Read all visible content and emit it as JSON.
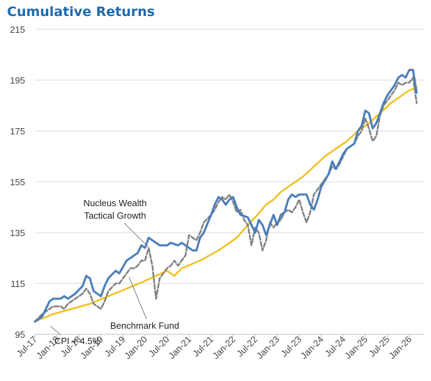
{
  "chart_data": {
    "type": "line",
    "title": "Cumulative Returns",
    "xlabel": "",
    "ylabel": "",
    "ylim": [
      95,
      215
    ],
    "yticks": [
      95,
      115,
      135,
      155,
      175,
      195,
      215
    ],
    "grid": "horizontal",
    "x_start_index": 0,
    "x_end_index": 106,
    "xtick_labels": [
      "Jul-17",
      "Jan-18",
      "Jul-18",
      "Jan-19",
      "Jul-19",
      "Jan-20",
      "Jul-20",
      "Jan-21",
      "Jul-21",
      "Jan-22",
      "Jul-22",
      "Jan-23",
      "Jul-23",
      "Jan-24",
      "Jul-24",
      "Jan-25",
      "Jul-25",
      "Jan-26"
    ],
    "annotations": [
      {
        "id": "nucleus",
        "line1": "Nucleus Wealth",
        "line2": "Tactical Growth"
      },
      {
        "id": "benchmark",
        "text": "Benchmark Fund"
      },
      {
        "id": "cpi",
        "text": "CPI + 4.5%"
      }
    ],
    "series": [
      {
        "name": "Nucleus Wealth Tactical Growth",
        "color": "#4a7ebb",
        "style": "solid",
        "points": [
          [
            0,
            100
          ],
          [
            2,
            102
          ],
          [
            4,
            108
          ],
          [
            5,
            109
          ],
          [
            7,
            109
          ],
          [
            8,
            110
          ],
          [
            9,
            109
          ],
          [
            11,
            111
          ],
          [
            13,
            114
          ],
          [
            14,
            118
          ],
          [
            15,
            117
          ],
          [
            16,
            112
          ],
          [
            18,
            110
          ],
          [
            19,
            114
          ],
          [
            20,
            117
          ],
          [
            22,
            120
          ],
          [
            23,
            119
          ],
          [
            25,
            124
          ],
          [
            26,
            125
          ],
          [
            27,
            126
          ],
          [
            28,
            127
          ],
          [
            29,
            130
          ],
          [
            30,
            129
          ],
          [
            31,
            133
          ],
          [
            33,
            131
          ],
          [
            34,
            130
          ],
          [
            36,
            130
          ],
          [
            37,
            131
          ],
          [
            39,
            130
          ],
          [
            40,
            131
          ],
          [
            41,
            130
          ],
          [
            43,
            128
          ],
          [
            44,
            128
          ],
          [
            45,
            133
          ],
          [
            46,
            135
          ],
          [
            48,
            142
          ],
          [
            49,
            146
          ],
          [
            50,
            149
          ],
          [
            51,
            148
          ],
          [
            52,
            146
          ],
          [
            53,
            148
          ],
          [
            54,
            149
          ],
          [
            55,
            145
          ],
          [
            56,
            142
          ],
          [
            58,
            141
          ],
          [
            59,
            138
          ],
          [
            60,
            135
          ],
          [
            61,
            140
          ],
          [
            62,
            138
          ],
          [
            63,
            134
          ],
          [
            64,
            138
          ],
          [
            65,
            142
          ],
          [
            66,
            138
          ],
          [
            67,
            142
          ],
          [
            68,
            143
          ],
          [
            69,
            148
          ],
          [
            70,
            150
          ],
          [
            71,
            149
          ],
          [
            72,
            150
          ],
          [
            74,
            150
          ],
          [
            75,
            146
          ],
          [
            76,
            144
          ],
          [
            77,
            148
          ],
          [
            78,
            153
          ],
          [
            80,
            158
          ],
          [
            81,
            163
          ],
          [
            82,
            160
          ],
          [
            83,
            163
          ],
          [
            84,
            166
          ],
          [
            85,
            168
          ],
          [
            86,
            169
          ],
          [
            87,
            170
          ],
          [
            88,
            175
          ],
          [
            89,
            177
          ],
          [
            90,
            183
          ],
          [
            91,
            182
          ],
          [
            92,
            176
          ],
          [
            93,
            178
          ],
          [
            94,
            182
          ],
          [
            95,
            186
          ],
          [
            96,
            189
          ],
          [
            97,
            191
          ],
          [
            98,
            193
          ],
          [
            99,
            196
          ],
          [
            100,
            197
          ],
          [
            101,
            196
          ],
          [
            102,
            199
          ],
          [
            103,
            199
          ],
          [
            104,
            190
          ]
        ]
      },
      {
        "name": "Benchmark Fund",
        "color": "#808080",
        "style": "dashed",
        "points": [
          [
            0,
            100
          ],
          [
            2,
            103
          ],
          [
            4,
            105
          ],
          [
            5,
            106
          ],
          [
            7,
            106
          ],
          [
            8,
            105
          ],
          [
            9,
            107
          ],
          [
            11,
            109
          ],
          [
            13,
            111
          ],
          [
            14,
            113
          ],
          [
            15,
            111
          ],
          [
            16,
            107
          ],
          [
            18,
            105
          ],
          [
            19,
            108
          ],
          [
            20,
            112
          ],
          [
            22,
            115
          ],
          [
            23,
            115
          ],
          [
            25,
            119
          ],
          [
            26,
            121
          ],
          [
            27,
            121
          ],
          [
            28,
            122
          ],
          [
            29,
            124
          ],
          [
            30,
            124
          ],
          [
            31,
            129
          ],
          [
            32,
            122
          ],
          [
            33,
            109
          ],
          [
            34,
            117
          ],
          [
            35,
            119
          ],
          [
            36,
            121
          ],
          [
            37,
            122
          ],
          [
            38,
            124
          ],
          [
            39,
            122
          ],
          [
            40,
            124
          ],
          [
            41,
            126
          ],
          [
            42,
            134
          ],
          [
            43,
            133
          ],
          [
            44,
            132
          ],
          [
            45,
            135
          ],
          [
            46,
            139
          ],
          [
            48,
            142
          ],
          [
            49,
            144
          ],
          [
            50,
            147
          ],
          [
            51,
            149
          ],
          [
            52,
            148
          ],
          [
            53,
            150
          ],
          [
            54,
            147
          ],
          [
            55,
            143
          ],
          [
            56,
            144
          ],
          [
            57,
            140
          ],
          [
            58,
            138
          ],
          [
            59,
            130
          ],
          [
            60,
            137
          ],
          [
            61,
            135
          ],
          [
            62,
            128
          ],
          [
            63,
            132
          ],
          [
            64,
            139
          ],
          [
            65,
            137
          ],
          [
            66,
            139
          ],
          [
            67,
            140
          ],
          [
            68,
            143
          ],
          [
            69,
            144
          ],
          [
            70,
            143
          ],
          [
            71,
            145
          ],
          [
            72,
            148
          ],
          [
            73,
            143
          ],
          [
            74,
            139
          ],
          [
            75,
            143
          ],
          [
            76,
            150
          ],
          [
            78,
            154
          ],
          [
            80,
            158
          ],
          [
            81,
            161
          ],
          [
            82,
            160
          ],
          [
            83,
            162
          ],
          [
            84,
            165
          ],
          [
            85,
            168
          ],
          [
            86,
            169
          ],
          [
            87,
            170
          ],
          [
            88,
            173
          ],
          [
            89,
            175
          ],
          [
            90,
            180
          ],
          [
            91,
            176
          ],
          [
            92,
            171
          ],
          [
            93,
            173
          ],
          [
            94,
            181
          ],
          [
            95,
            185
          ],
          [
            96,
            187
          ],
          [
            97,
            189
          ],
          [
            98,
            191
          ],
          [
            99,
            194
          ],
          [
            100,
            193
          ],
          [
            101,
            194
          ],
          [
            102,
            194
          ],
          [
            103,
            196
          ],
          [
            104,
            186
          ]
        ]
      },
      {
        "name": "CPI + 4.5%",
        "color": "#f0c020",
        "style": "solid",
        "points": [
          [
            0,
            100
          ],
          [
            5,
            103
          ],
          [
            10,
            105
          ],
          [
            15,
            107
          ],
          [
            20,
            110
          ],
          [
            25,
            113
          ],
          [
            30,
            116
          ],
          [
            33,
            118
          ],
          [
            36,
            120
          ],
          [
            38,
            118
          ],
          [
            40,
            121
          ],
          [
            45,
            124
          ],
          [
            50,
            128
          ],
          [
            55,
            133
          ],
          [
            58,
            138
          ],
          [
            60,
            141
          ],
          [
            63,
            146
          ],
          [
            65,
            148
          ],
          [
            67,
            151
          ],
          [
            70,
            154
          ],
          [
            73,
            157
          ],
          [
            76,
            161
          ],
          [
            79,
            165
          ],
          [
            82,
            168
          ],
          [
            85,
            171
          ],
          [
            88,
            175
          ],
          [
            91,
            178
          ],
          [
            94,
            182
          ],
          [
            97,
            186
          ],
          [
            100,
            189
          ],
          [
            102,
            191
          ],
          [
            104,
            192
          ]
        ]
      }
    ]
  }
}
